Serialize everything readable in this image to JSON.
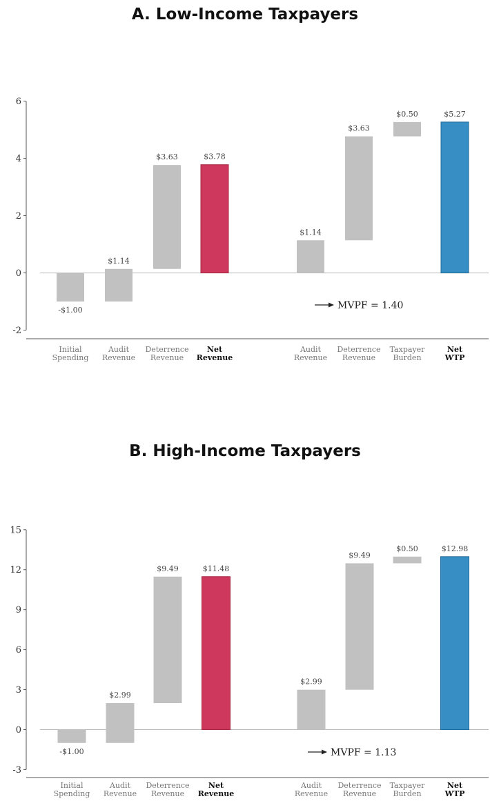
{
  "colors": {
    "grey": "#c1c1c1",
    "net_revenue": "#cd385c",
    "net_revenue_edge": "#a8243f",
    "net_wtp": "#368ec4",
    "net_wtp_edge": "#1f6b99",
    "zero_line": "#bbbbbb",
    "axis": "#555555"
  },
  "chart_data": [
    {
      "type": "bar",
      "subtype": "waterfall",
      "title": "A. Low-Income Taxpayers",
      "ylim": [
        -2.3,
        6.4
      ],
      "yticks": [
        -2,
        0,
        2,
        4,
        6
      ],
      "ytick_labels": [
        "-2",
        "0",
        "2",
        "4",
        "6"
      ],
      "grid": false,
      "annotation": "MVPF = 1.40",
      "bars": [
        {
          "label": [
            "Initial",
            "Spending"
          ],
          "bold": false,
          "start": 0,
          "end": -1.0,
          "value_label": "-$1.00",
          "color": "grey"
        },
        {
          "label": [
            "Audit",
            "Revenue"
          ],
          "bold": false,
          "start": -1.0,
          "end": 0.14,
          "value_label": "$1.14",
          "color": "grey"
        },
        {
          "label": [
            "Deterrence",
            "Revenue"
          ],
          "bold": false,
          "start": 0.14,
          "end": 3.77,
          "value_label": "$3.63",
          "color": "grey"
        },
        {
          "label": [
            "Net",
            "Revenue"
          ],
          "bold": true,
          "start": 0,
          "end": 3.78,
          "value_label": "$3.78",
          "color": "net_revenue"
        },
        {
          "label": [
            "Audit",
            "Revenue"
          ],
          "bold": false,
          "start": 0,
          "end": 1.14,
          "value_label": "$1.14",
          "color": "grey"
        },
        {
          "label": [
            "Deterrence",
            "Revenue"
          ],
          "bold": false,
          "start": 1.14,
          "end": 4.77,
          "value_label": "$3.63",
          "color": "grey"
        },
        {
          "label": [
            "Taxpayer",
            "Burden"
          ],
          "bold": false,
          "start": 4.77,
          "end": 5.27,
          "value_label": "$0.50",
          "color": "grey"
        },
        {
          "label": [
            "Net",
            "WTP"
          ],
          "bold": true,
          "start": 0,
          "end": 5.27,
          "value_label": "$5.27",
          "color": "net_wtp"
        }
      ]
    },
    {
      "type": "bar",
      "subtype": "waterfall",
      "title": "B. High-Income Taxpayers",
      "ylim": [
        -3.6,
        15.3
      ],
      "yticks": [
        -3,
        0,
        3,
        6,
        9,
        12,
        15
      ],
      "ytick_labels": [
        "-3",
        "0",
        "3",
        "6",
        "9",
        "12",
        "15"
      ],
      "grid": false,
      "annotation": "MVPF = 1.13",
      "bars": [
        {
          "label": [
            "Initial",
            "Spending"
          ],
          "bold": false,
          "start": 0,
          "end": -1.0,
          "value_label": "-$1.00",
          "color": "grey"
        },
        {
          "label": [
            "Audit",
            "Revenue"
          ],
          "bold": false,
          "start": -1.0,
          "end": 1.99,
          "value_label": "$2.99",
          "color": "grey"
        },
        {
          "label": [
            "Deterrence",
            "Revenue"
          ],
          "bold": false,
          "start": 1.99,
          "end": 11.48,
          "value_label": "$9.49",
          "color": "grey"
        },
        {
          "label": [
            "Net",
            "Revenue"
          ],
          "bold": true,
          "start": 0,
          "end": 11.48,
          "value_label": "$11.48",
          "color": "net_revenue"
        },
        {
          "label": [
            "Audit",
            "Revenue"
          ],
          "bold": false,
          "start": 0,
          "end": 2.99,
          "value_label": "$2.99",
          "color": "grey"
        },
        {
          "label": [
            "Deterrence",
            "Revenue"
          ],
          "bold": false,
          "start": 2.99,
          "end": 12.48,
          "value_label": "$9.49",
          "color": "grey"
        },
        {
          "label": [
            "Taxpayer",
            "Burden"
          ],
          "bold": false,
          "start": 12.48,
          "end": 12.98,
          "value_label": "$0.50",
          "color": "grey"
        },
        {
          "label": [
            "Net",
            "WTP"
          ],
          "bold": true,
          "start": 0,
          "end": 12.98,
          "value_label": "$12.98",
          "color": "net_wtp"
        }
      ]
    }
  ]
}
